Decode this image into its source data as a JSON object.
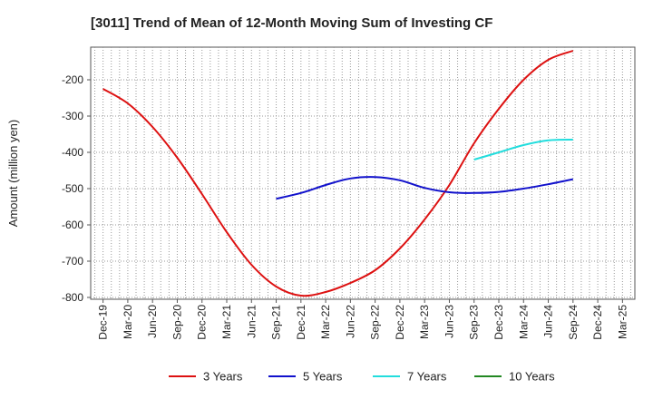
{
  "chart_data": {
    "type": "line",
    "title": "[3011]  Trend of Mean of 12-Month Moving Sum of Investing CF",
    "xlabel": "",
    "ylabel": "Amount (million yen)",
    "ylim": [
      -805,
      -110
    ],
    "yticks": [
      -200,
      -300,
      -400,
      -500,
      -600,
      -700,
      -800
    ],
    "x_tick_labels": [
      "Dec-19",
      "Mar-20",
      "Jun-20",
      "Sep-20",
      "Dec-20",
      "Mar-21",
      "Jun-21",
      "Sep-21",
      "Dec-21",
      "Mar-22",
      "Jun-22",
      "Sep-22",
      "Dec-22",
      "Mar-23",
      "Jun-23",
      "Sep-23",
      "Dec-23",
      "Mar-24",
      "Jun-24",
      "Sep-24",
      "Dec-24",
      "Mar-25"
    ],
    "grid": true,
    "legend_position": "bottom",
    "series": [
      {
        "name": "3 Years",
        "color": "#dd1111",
        "points": [
          [
            0,
            -225
          ],
          [
            1,
            -265
          ],
          [
            2,
            -330
          ],
          [
            3,
            -415
          ],
          [
            4,
            -515
          ],
          [
            5,
            -620
          ],
          [
            6,
            -710
          ],
          [
            7,
            -770
          ],
          [
            8,
            -795
          ],
          [
            9,
            -785
          ],
          [
            10,
            -760
          ],
          [
            11,
            -725
          ],
          [
            12,
            -665
          ],
          [
            13,
            -585
          ],
          [
            14,
            -490
          ],
          [
            15,
            -375
          ],
          [
            16,
            -280
          ],
          [
            17,
            -200
          ],
          [
            18,
            -145
          ],
          [
            19,
            -120
          ]
        ]
      },
      {
        "name": "5 Years",
        "color": "#1111cc",
        "points": [
          [
            7,
            -528
          ],
          [
            8,
            -512
          ],
          [
            9,
            -490
          ],
          [
            10,
            -472
          ],
          [
            11,
            -468
          ],
          [
            12,
            -477
          ],
          [
            13,
            -498
          ],
          [
            14,
            -510
          ],
          [
            15,
            -512
          ],
          [
            16,
            -509
          ],
          [
            17,
            -500
          ],
          [
            18,
            -488
          ],
          [
            19,
            -474
          ]
        ]
      },
      {
        "name": "7 Years",
        "color": "#22dddd",
        "points": [
          [
            15,
            -420
          ],
          [
            16,
            -400
          ],
          [
            17,
            -380
          ],
          [
            18,
            -367
          ],
          [
            19,
            -365
          ]
        ]
      },
      {
        "name": "10 Years",
        "color": "#228822",
        "points": []
      }
    ]
  }
}
